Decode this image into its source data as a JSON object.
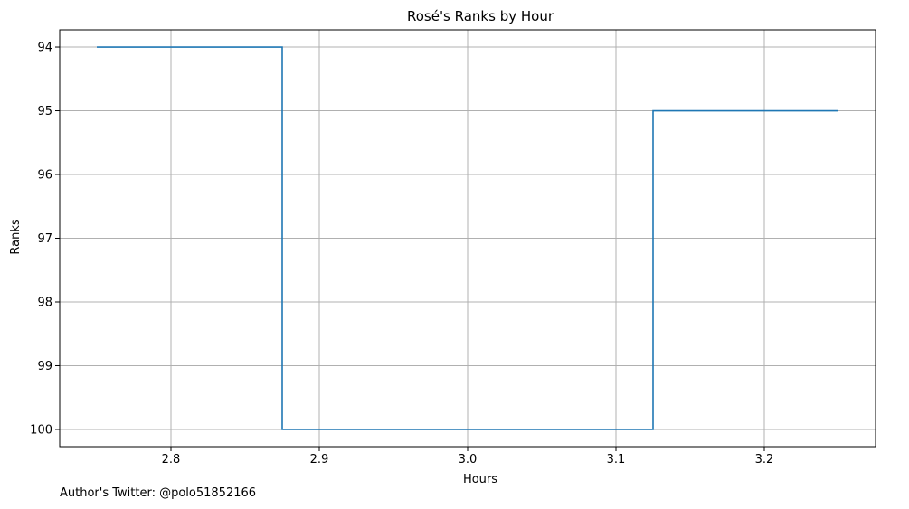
{
  "chart_data": {
    "type": "line",
    "step": "mid",
    "title": "Rosé's Ranks by Hour",
    "xlabel": "Hours",
    "ylabel": "Ranks",
    "grid": true,
    "y_inverted": true,
    "x_ticks": [
      2.8,
      2.9,
      3.0,
      3.1,
      3.2
    ],
    "x_tick_labels": [
      "2.8",
      "2.9",
      "3.0",
      "3.1",
      "3.2"
    ],
    "y_ticks": [
      94,
      95,
      96,
      97,
      98,
      99,
      100
    ],
    "y_tick_labels": [
      "94",
      "95",
      "96",
      "97",
      "98",
      "99",
      "100"
    ],
    "xlim": [
      2.725,
      3.275
    ],
    "ylim": [
      100.27,
      93.73
    ],
    "series": [
      {
        "x": [
          2.75,
          3.0,
          3.25
        ],
        "y": [
          94,
          100,
          95
        ],
        "color": "#1f77b4"
      }
    ]
  },
  "footer": {
    "author_note": "Author's Twitter: @polo51852166"
  }
}
